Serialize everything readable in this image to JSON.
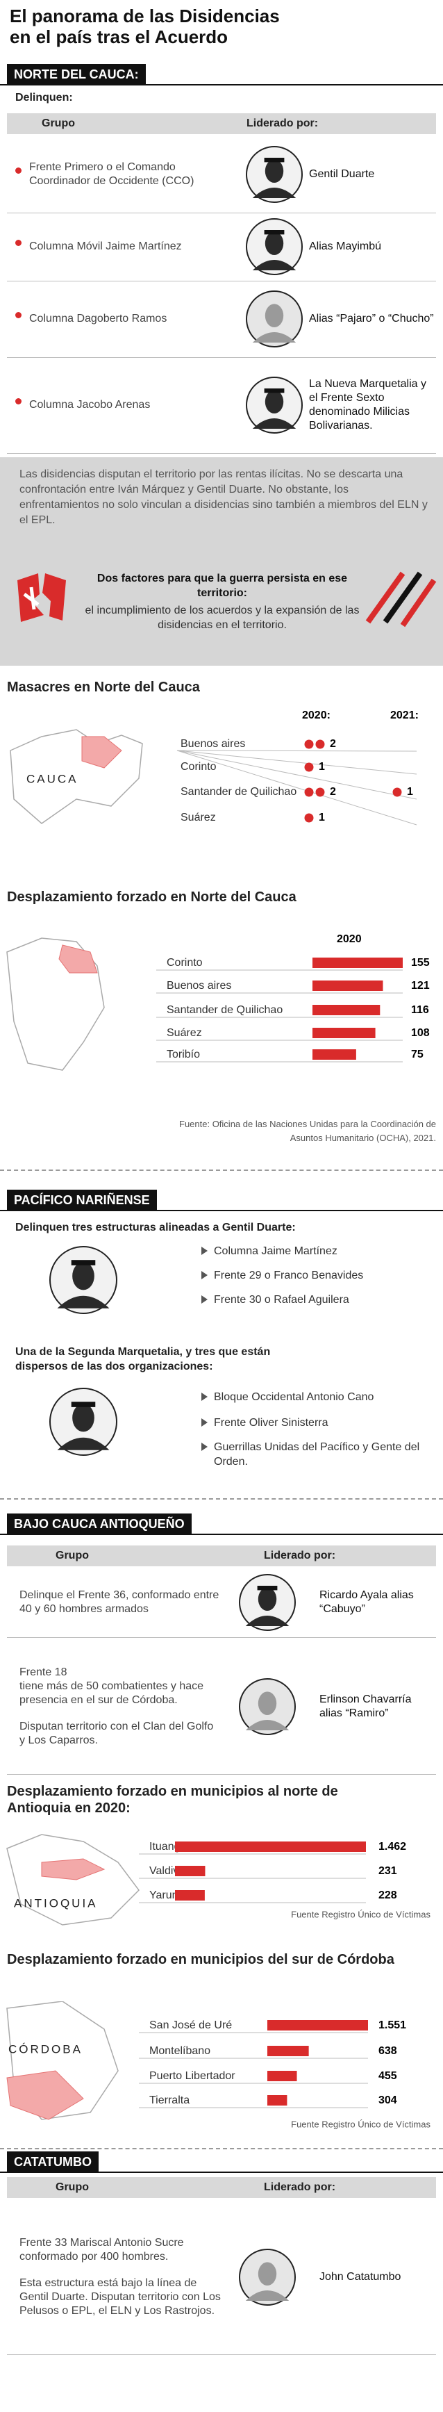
{
  "header": {
    "title_lines": [
      "El panorama de las Disidencias",
      "en el país tras el Acuerdo"
    ]
  },
  "norte_cauca": {
    "label": "NORTE DEL CAUCA:",
    "intro": "Delinquen:",
    "table": {
      "headers": [
        "Grupo",
        "Liderado por:"
      ],
      "rows": [
        {
          "group": [
            "Frente Primero o el Comando Coordinador de Occidente (CCO)"
          ],
          "leader": "Gentil Duarte"
        },
        {
          "group": [
            "Columna Móvil Jaime Martínez"
          ],
          "leader": "Alias Mayimbú"
        },
        {
          "group": [
            "Columna Dagoberto Ramos"
          ],
          "leader": "Alias “Pajaro” o “Chucho”"
        },
        {
          "group": [
            "Columna Jacobo Arenas"
          ],
          "leader": "La Nueva Marquetalia y el Frente Sexto denominado Milicias Bolivarianas."
        }
      ]
    },
    "note": "Las disidencias disputan el territorio por las rentas ilícitas. No se descarta una confrontación entre Iván Márquez y Gentil Duarte. No obstante, los enfrentamientos no solo vinculan a disidencias sino también a miembros del ELN y el EPL.",
    "factors": {
      "title": "Dos factores para que la guerra persista en ese territorio:",
      "text": "el incumplimiento de los acuerdos y la expansión de las disidencias en el territorio."
    }
  },
  "masacres": {
    "title": "Masacres en Norte del Cauca",
    "map_label": "CAUCA",
    "categories": [
      "Buenos aires",
      "Corinto",
      "Santander de Quilichao",
      "Suárez"
    ],
    "series": [
      {
        "name": "2020:",
        "values": [
          2,
          1,
          2,
          1
        ]
      },
      {
        "name": "2021:",
        "values": [
          null,
          null,
          1,
          null
        ]
      }
    ]
  },
  "desplazamiento_cauca": {
    "title": "Desplazamiento forzado en Norte del Cauca",
    "series_name": "2020",
    "categories": [
      "Corinto",
      "Buenos aires",
      "Santander de Quilichao",
      "Suárez",
      "Toribío"
    ],
    "values": [
      155,
      121,
      116,
      108,
      75
    ],
    "source": "Fuente: Oficina de las Naciones Unidas para la Coordinación de Asuntos Humanitario (OCHA), 2021."
  },
  "pacifico": {
    "label": "PACÍFICO NARIÑENSE",
    "group1": {
      "title": "Delinquen tres estructuras alineadas a Gentil Duarte:",
      "items": [
        "Columna Jaime Martínez",
        "Frente 29 o Franco Benavides",
        "Frente 30 o Rafael Aguilera"
      ]
    },
    "group2": {
      "title": "Una de la Segunda Marquetalia, y tres que están dispersos de las dos organizaciones:",
      "items": [
        "Bloque Occidental Antonio Cano",
        "Frente Oliver Sinisterra",
        "Guerrillas Unidas del Pacífico y Gente del Orden."
      ]
    }
  },
  "bajo_cauca": {
    "label": "BAJO CAUCA ANTIOQUEÑO",
    "table": {
      "headers": [
        "Grupo",
        "Liderado por:"
      ],
      "rows": [
        {
          "group": [
            "Delinque el Frente 36, conformado entre 40 y 60 hombres armados"
          ],
          "leader": "Ricardo Ayala alias “Cabuyo”"
        },
        {
          "group": [
            "Frente 18",
            "tiene más de 50 combatientes y hace presencia en el sur de Córdoba.",
            "Disputan territorio con el Clan del Golfo y Los Caparros."
          ],
          "leader": "Erlinson Chavarría alias “Ramiro”"
        }
      ]
    }
  },
  "desplazamiento_antioquia": {
    "title": "Desplazamiento forzado en municipios al norte de Antioquia en 2020:",
    "map_label": "ANTIOQUIA",
    "categories": [
      "Ituango",
      "Valdivia",
      "Yarumal"
    ],
    "values": [
      1462,
      231,
      228
    ],
    "value_labels": [
      "1.462",
      "231",
      "228"
    ],
    "source": "Fuente Registro Único de Víctimas"
  },
  "desplazamiento_cordoba": {
    "title": "Desplazamiento forzado en municipios del sur de Córdoba",
    "map_label": "CÓRDOBA",
    "categories": [
      "San José de Uré",
      "Montelíbano",
      "Puerto Libertador",
      "Tierralta"
    ],
    "values": [
      1551,
      638,
      455,
      304
    ],
    "value_labels": [
      "1.551",
      "638",
      "455",
      "304"
    ],
    "source": "Fuente Registro Único de Víctimas"
  },
  "catatumbo": {
    "label": "CATATUMBO",
    "table": {
      "headers": [
        "Grupo",
        "Liderado por:"
      ],
      "rows": [
        {
          "group": [
            "Frente 33 Mariscal Antonio Sucre conformado por 400 hombres.",
            "Esta estructura está bajo la línea de Gentil Duarte.  Disputan territorio con Los Pelusos o EPL, el ELN y Los Rastrojos."
          ],
          "leader": "John Catatumbo"
        }
      ]
    }
  }
}
